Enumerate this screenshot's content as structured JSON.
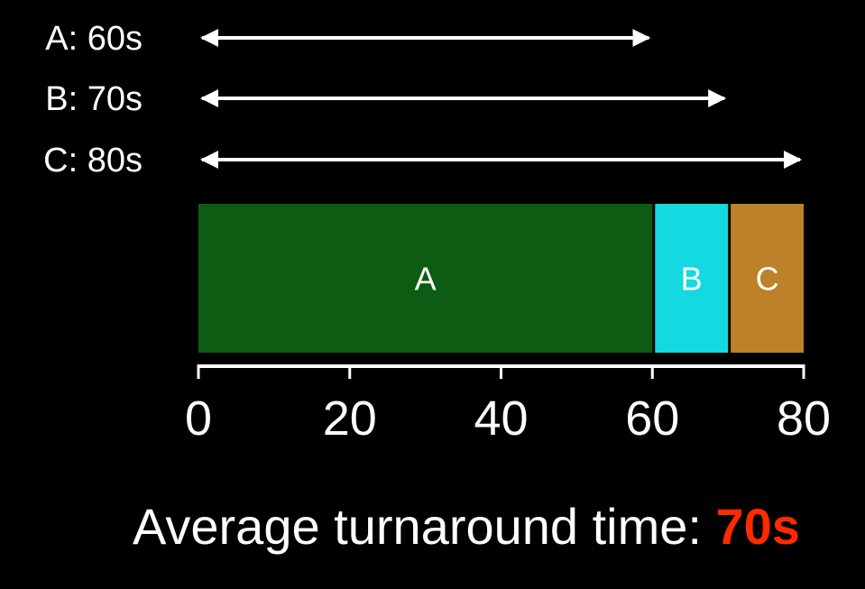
{
  "chart_data": {
    "type": "gantt",
    "unit": "s",
    "jobs": [
      {
        "label": "A: 60s",
        "bar_label": "A",
        "start": 0,
        "end": 60,
        "color": "#0e5c13"
      },
      {
        "label": "B: 70s",
        "bar_label": "B",
        "start": 60,
        "end": 70,
        "color": "#14d9e0"
      },
      {
        "label": "C: 80s",
        "bar_label": "C",
        "start": 70,
        "end": 80,
        "color": "#bd812a"
      }
    ],
    "xlim": [
      0,
      80
    ],
    "xticks": [
      0,
      20,
      40,
      60,
      80
    ],
    "xtick_labels": [
      "0",
      "20",
      "40",
      "60",
      "80"
    ]
  },
  "summary": {
    "label": "Average turnaround time: ",
    "value": "70s",
    "value_color": "#ff2a00"
  }
}
